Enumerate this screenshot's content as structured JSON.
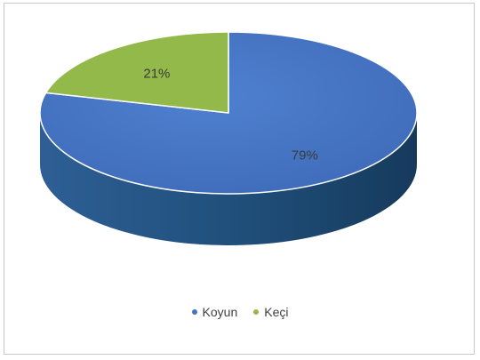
{
  "chart_data": {
    "type": "pie",
    "categories": [
      "Koyun",
      "Keçi"
    ],
    "values": [
      79,
      21
    ],
    "data_labels": [
      "79%",
      "21%"
    ],
    "colors": [
      "#4472C4",
      "#92B94A"
    ],
    "side_colors": [
      "#1F4E79",
      "#5E7C2E"
    ],
    "start_angle_deg": 90,
    "direction": "clockwise",
    "legend_position": "bottom",
    "title": "",
    "three_d": true
  },
  "legend": {
    "items": [
      {
        "label": "Koyun",
        "color": "#4472C4"
      },
      {
        "label": "Keçi",
        "color": "#92B94A"
      }
    ]
  }
}
